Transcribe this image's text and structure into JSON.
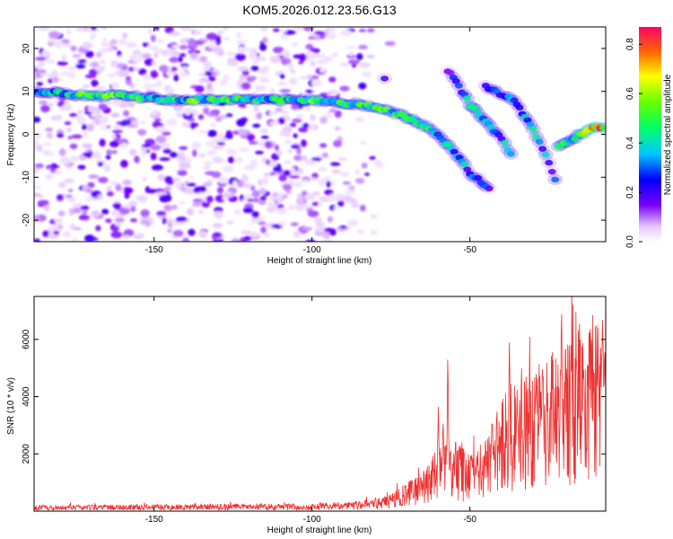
{
  "chart_data": [
    {
      "type": "heatmap",
      "title": "KOM5.2026.012.23.56.G13",
      "xlabel": "Height of straight line (km)",
      "ylabel": "Frequency (Hz)",
      "xlim": [
        -188,
        -7
      ],
      "ylim": [
        -25,
        25
      ],
      "xticks": [
        -150,
        -100,
        -50
      ],
      "yticks": [
        -20,
        -10,
        0,
        10,
        20
      ],
      "colorbar": {
        "label": "Normalized spectral amplitude",
        "range": [
          0.0,
          0.87
        ],
        "ticks": [
          0.0,
          0.2,
          0.4,
          0.6,
          0.8
        ]
      },
      "ridges": [
        {
          "name": "main-trace",
          "points": [
            [
              -188,
              10,
              0.35
            ],
            [
              -170,
              9,
              0.55
            ],
            [
              -160,
              9,
              0.6
            ],
            [
              -145,
              8,
              0.45
            ],
            [
              -135,
              8,
              0.55
            ],
            [
              -115,
              8,
              0.45
            ],
            [
              -100,
              8,
              0.55
            ],
            [
              -85,
              7,
              0.5
            ],
            [
              -78,
              6,
              0.55
            ],
            [
              -70,
              4,
              0.5
            ],
            [
              -62,
              1,
              0.45
            ],
            [
              -55,
              -4,
              0.4
            ],
            [
              -50,
              -9,
              0.35
            ],
            [
              -43,
              -13,
              0.3
            ]
          ]
        },
        {
          "name": "upper-branch",
          "points": [
            [
              -57,
              15,
              0.2
            ],
            [
              -50,
              7,
              0.45
            ],
            [
              -45,
              3,
              0.35
            ],
            [
              -40,
              -1,
              0.35
            ],
            [
              -36,
              -6,
              0.5
            ]
          ]
        },
        {
          "name": "upper-branch-2",
          "points": [
            [
              -45,
              11,
              0.3
            ],
            [
              -36,
              8,
              0.35
            ],
            [
              -30,
              1,
              0.4
            ],
            [
              -26,
              -5,
              0.35
            ],
            [
              -22,
              -12,
              0.25
            ]
          ]
        },
        {
          "name": "right-trace",
          "points": [
            [
              -22,
              -3,
              0.45
            ],
            [
              -15,
              0,
              0.6
            ],
            [
              -12,
              1,
              0.7
            ],
            [
              -7,
              2,
              0.8
            ]
          ]
        },
        {
          "name": "isolated-blob",
          "points": [
            [
              -77,
              13,
              0.2
            ]
          ]
        }
      ]
    },
    {
      "type": "line",
      "xlabel": "Height of straight line (km)",
      "ylabel": "SNR (10 * v/v)",
      "xlim": [
        -188,
        -7
      ],
      "ylim": [
        0,
        7500
      ],
      "xticks": [
        -150,
        -100,
        -50
      ],
      "yticks": [
        2000,
        4000,
        6000
      ],
      "series": [
        {
          "name": "SNR",
          "color": "#ee3030",
          "baseline": [
            [
              -188,
              120
            ],
            [
              -140,
              140
            ],
            [
              -100,
              150
            ],
            [
              -85,
              200
            ],
            [
              -75,
              350
            ],
            [
              -65,
              800
            ],
            [
              -60,
              1300
            ],
            [
              -55,
              1500
            ],
            [
              -50,
              1100
            ],
            [
              -45,
              1500
            ],
            [
              -40,
              2200
            ],
            [
              -35,
              2800
            ],
            [
              -30,
              3000
            ],
            [
              -25,
              3100
            ],
            [
              -20,
              3300
            ],
            [
              -15,
              3800
            ],
            [
              -10,
              4000
            ],
            [
              -7,
              3600
            ]
          ],
          "spikes": [
            [
              -57,
              5700
            ],
            [
              -60,
              3700
            ],
            [
              -58.5,
              3300
            ],
            [
              -43,
              3300
            ],
            [
              -37.5,
              6000
            ],
            [
              -35,
              3500
            ],
            [
              -29,
              4900
            ],
            [
              -27,
              5200
            ],
            [
              -21,
              7300
            ],
            [
              -18,
              5800
            ],
            [
              -14,
              5000
            ],
            [
              -9.5,
              4800
            ],
            [
              -8,
              7000
            ],
            [
              -7.3,
              5800
            ]
          ]
        }
      ]
    }
  ]
}
